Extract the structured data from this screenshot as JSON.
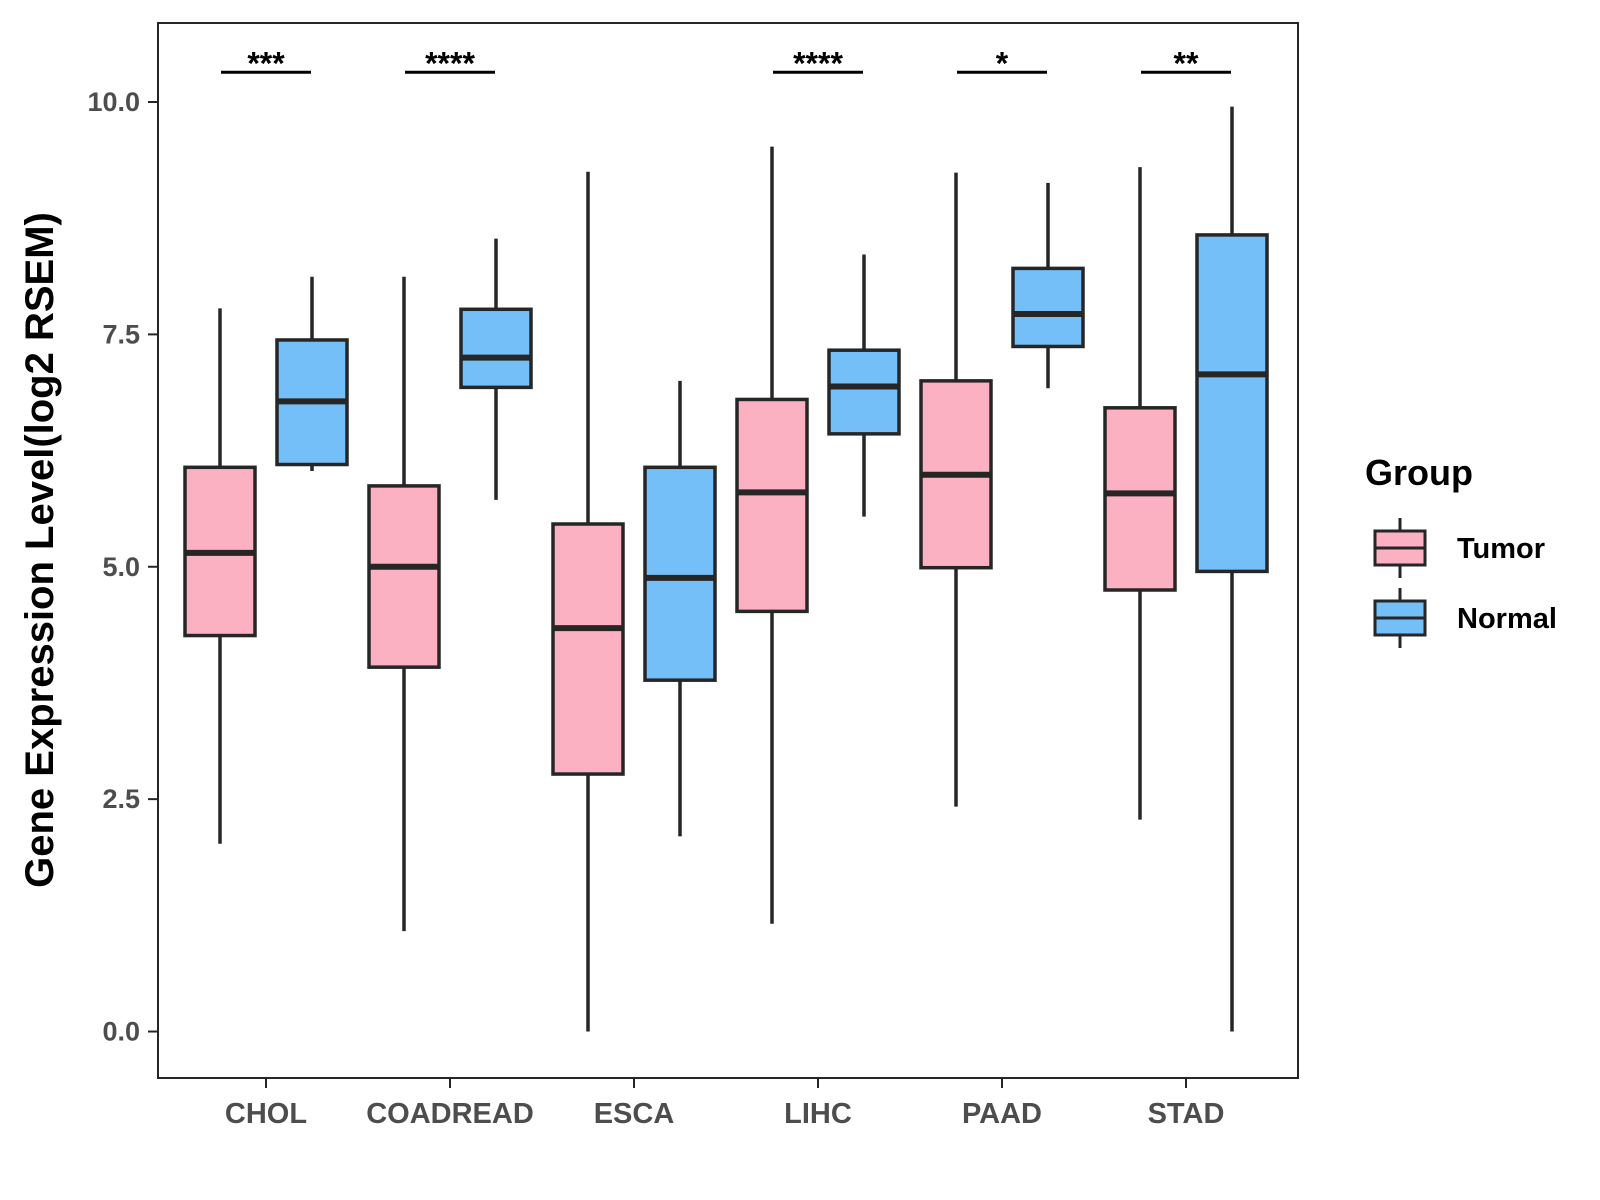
{
  "chart_data": {
    "type": "box",
    "title": "",
    "xlabel": "",
    "ylabel": "Gene Expression Level(log2 RSEM)",
    "ylim": [
      -0.5,
      10.85
    ],
    "yticks": [
      0.0,
      2.5,
      5.0,
      7.5,
      10.0
    ],
    "ytick_labels": [
      "0.0",
      "2.5",
      "5.0",
      "7.5",
      "10.0"
    ],
    "grid": false,
    "legend": {
      "title": "Group",
      "placement": "right",
      "entries": [
        "Tumor",
        "Normal"
      ]
    },
    "colors": {
      "Tumor": "#fbb1c2",
      "Normal": "#74bff7",
      "outline": "#262626",
      "frame": "#262626"
    },
    "categories": [
      "CHOL",
      "COADREAD",
      "ESCA",
      "LIHC",
      "PAAD",
      "STAD"
    ],
    "series": [
      {
        "name": "Tumor",
        "boxes": [
          {
            "category": "CHOL",
            "min": 2.02,
            "q1": 4.26,
            "median": 5.15,
            "q3": 6.07,
            "max": 7.78
          },
          {
            "category": "COADREAD",
            "min": 1.08,
            "q1": 3.92,
            "median": 5.0,
            "q3": 5.87,
            "max": 8.12
          },
          {
            "category": "ESCA",
            "min": 0.0,
            "q1": 2.77,
            "median": 4.34,
            "q3": 5.46,
            "max": 9.25
          },
          {
            "category": "LIHC",
            "min": 1.16,
            "q1": 4.52,
            "median": 5.8,
            "q3": 6.8,
            "max": 9.52
          },
          {
            "category": "PAAD",
            "min": 2.42,
            "q1": 4.99,
            "median": 5.99,
            "q3": 7.0,
            "max": 9.24
          },
          {
            "category": "STAD",
            "min": 2.28,
            "q1": 4.75,
            "median": 5.79,
            "q3": 6.71,
            "max": 9.3
          }
        ]
      },
      {
        "name": "Normal",
        "boxes": [
          {
            "category": "CHOL",
            "min": 6.03,
            "q1": 6.1,
            "median": 6.78,
            "q3": 7.44,
            "max": 8.12
          },
          {
            "category": "COADREAD",
            "min": 5.72,
            "q1": 6.93,
            "median": 7.25,
            "q3": 7.77,
            "max": 8.53
          },
          {
            "category": "ESCA",
            "min": 2.1,
            "q1": 3.78,
            "median": 4.88,
            "q3": 6.07,
            "max": 7.0
          },
          {
            "category": "LIHC",
            "min": 5.54,
            "q1": 6.43,
            "median": 6.94,
            "q3": 7.33,
            "max": 8.36
          },
          {
            "category": "PAAD",
            "min": 6.92,
            "q1": 7.37,
            "median": 7.72,
            "q3": 8.21,
            "max": 9.13
          },
          {
            "category": "STAD",
            "min": 0.0,
            "q1": 4.95,
            "median": 7.07,
            "q3": 8.57,
            "max": 9.95
          }
        ]
      }
    ],
    "significance": [
      {
        "category": "CHOL",
        "label": "***"
      },
      {
        "category": "COADREAD",
        "label": "****"
      },
      {
        "category": "ESCA",
        "label": ""
      },
      {
        "category": "LIHC",
        "label": "****"
      },
      {
        "category": "PAAD",
        "label": "*"
      },
      {
        "category": "STAD",
        "label": "**"
      }
    ],
    "significance_level": 10.32
  }
}
